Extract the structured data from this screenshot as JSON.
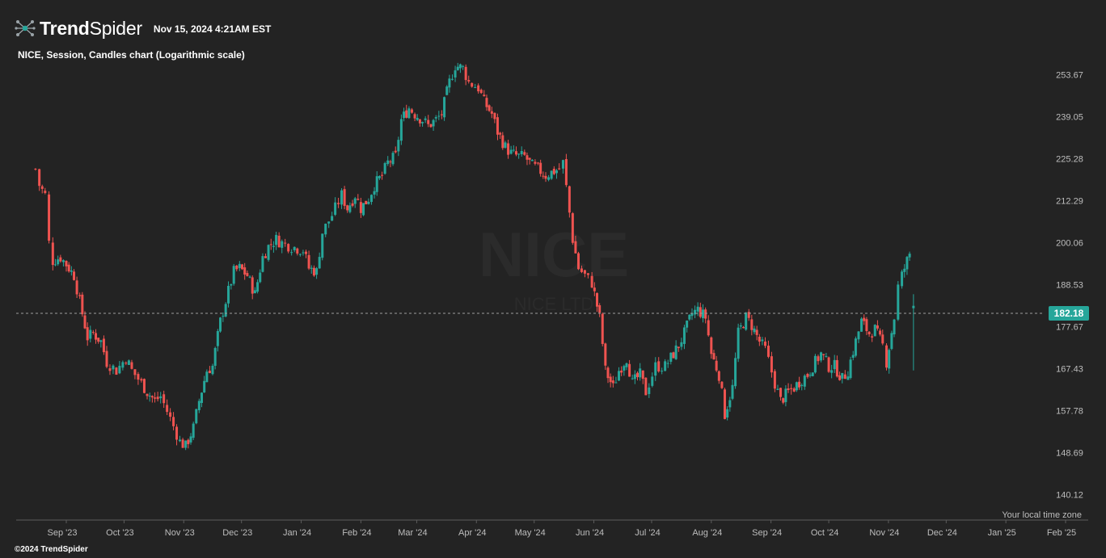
{
  "header": {
    "brand_bold": "Trend",
    "brand_light": "Spider",
    "timestamp": "Nov 15, 2024 4:21AM EST",
    "chart_description": "NICE, Session, Candles chart (Logarithmic scale)",
    "local_time_note": "Your local time zone",
    "copyright": "©2024 TrendSpider"
  },
  "watermark": {
    "symbol": "NICE",
    "name": "NICE LTD"
  },
  "colors": {
    "up": "#26a69a",
    "down": "#ef5350",
    "background": "#232323",
    "price_line": "#9e9e9e",
    "price_tag": "#26a69a"
  },
  "chart_data": {
    "type": "candlestick",
    "title": "NICE, Session, Candles chart (Logarithmic scale)",
    "y_scale": "log",
    "ylim": [
      135.8,
      268
    ],
    "y_ticks": [
      140.12,
      148.69,
      157.78,
      167.43,
      177.67,
      188.53,
      200.06,
      212.29,
      225.28,
      239.05,
      253.67
    ],
    "x_ticks": [
      "Sep '23",
      "Oct '23",
      "Nov '23",
      "Dec '23",
      "Jan '24",
      "Feb '24",
      "Mar '24",
      "Apr '24",
      "May '24",
      "Jun '24",
      "Jul '24",
      "Aug '24",
      "Sep '24",
      "Oct '24",
      "Nov '24",
      "Dec '24",
      "Jan '25",
      "Feb '25"
    ],
    "last_price": 182.18,
    "series": [
      {
        "date": "2023-08-16",
        "price": 222
      },
      {
        "date": "2023-08-18",
        "price": 217
      },
      {
        "date": "2023-08-21",
        "price": 214
      },
      {
        "date": "2023-08-23",
        "price": 200
      },
      {
        "date": "2023-08-25",
        "price": 195
      },
      {
        "date": "2023-08-29",
        "price": 196
      },
      {
        "date": "2023-09-01",
        "price": 194
      },
      {
        "date": "2023-09-05",
        "price": 191
      },
      {
        "date": "2023-09-08",
        "price": 184
      },
      {
        "date": "2023-09-12",
        "price": 175
      },
      {
        "date": "2023-09-15",
        "price": 176
      },
      {
        "date": "2023-09-19",
        "price": 174
      },
      {
        "date": "2023-09-22",
        "price": 169
      },
      {
        "date": "2023-09-27",
        "price": 167
      },
      {
        "date": "2023-10-02",
        "price": 170
      },
      {
        "date": "2023-10-05",
        "price": 167
      },
      {
        "date": "2023-10-10",
        "price": 164
      },
      {
        "date": "2023-10-13",
        "price": 162
      },
      {
        "date": "2023-10-17",
        "price": 160
      },
      {
        "date": "2023-10-20",
        "price": 161
      },
      {
        "date": "2023-10-25",
        "price": 156
      },
      {
        "date": "2023-10-30",
        "price": 151
      },
      {
        "date": "2023-11-02",
        "price": 150
      },
      {
        "date": "2023-11-06",
        "price": 154
      },
      {
        "date": "2023-11-09",
        "price": 160
      },
      {
        "date": "2023-11-13",
        "price": 167
      },
      {
        "date": "2023-11-16",
        "price": 168
      },
      {
        "date": "2023-11-20",
        "price": 179
      },
      {
        "date": "2023-11-27",
        "price": 192
      },
      {
        "date": "2023-11-30",
        "price": 193
      },
      {
        "date": "2023-12-04",
        "price": 191
      },
      {
        "date": "2023-12-08",
        "price": 186
      },
      {
        "date": "2023-12-12",
        "price": 196
      },
      {
        "date": "2023-12-15",
        "price": 199
      },
      {
        "date": "2023-12-19",
        "price": 201
      },
      {
        "date": "2023-12-22",
        "price": 200
      },
      {
        "date": "2023-12-27",
        "price": 199
      },
      {
        "date": "2024-01-02",
        "price": 198
      },
      {
        "date": "2024-01-05",
        "price": 193
      },
      {
        "date": "2024-01-09",
        "price": 192
      },
      {
        "date": "2024-01-12",
        "price": 203
      },
      {
        "date": "2024-01-17",
        "price": 208
      },
      {
        "date": "2024-01-22",
        "price": 214
      },
      {
        "date": "2024-01-25",
        "price": 210
      },
      {
        "date": "2024-01-29",
        "price": 214
      },
      {
        "date": "2024-02-01",
        "price": 210
      },
      {
        "date": "2024-02-05",
        "price": 213
      },
      {
        "date": "2024-02-08",
        "price": 217
      },
      {
        "date": "2024-02-12",
        "price": 220
      },
      {
        "date": "2024-02-15",
        "price": 224
      },
      {
        "date": "2024-02-19",
        "price": 226
      },
      {
        "date": "2024-02-22",
        "price": 238
      },
      {
        "date": "2024-02-26",
        "price": 242
      },
      {
        "date": "2024-02-29",
        "price": 240
      },
      {
        "date": "2024-03-04",
        "price": 238
      },
      {
        "date": "2024-03-07",
        "price": 236
      },
      {
        "date": "2024-03-11",
        "price": 238
      },
      {
        "date": "2024-03-14",
        "price": 240
      },
      {
        "date": "2024-03-18",
        "price": 251
      },
      {
        "date": "2024-03-21",
        "price": 257
      },
      {
        "date": "2024-03-25",
        "price": 256
      },
      {
        "date": "2024-03-28",
        "price": 251
      },
      {
        "date": "2024-04-02",
        "price": 249
      },
      {
        "date": "2024-04-05",
        "price": 244
      },
      {
        "date": "2024-04-09",
        "price": 240
      },
      {
        "date": "2024-04-12",
        "price": 234
      },
      {
        "date": "2024-04-16",
        "price": 229
      },
      {
        "date": "2024-04-19",
        "price": 227
      },
      {
        "date": "2024-04-23",
        "price": 226
      },
      {
        "date": "2024-04-26",
        "price": 226
      },
      {
        "date": "2024-04-30",
        "price": 223
      },
      {
        "date": "2024-05-03",
        "price": 222
      },
      {
        "date": "2024-05-07",
        "price": 220
      },
      {
        "date": "2024-05-10",
        "price": 221
      },
      {
        "date": "2024-05-14",
        "price": 222
      },
      {
        "date": "2024-05-16",
        "price": 224
      },
      {
        "date": "2024-05-21",
        "price": 201
      },
      {
        "date": "2024-05-24",
        "price": 193
      },
      {
        "date": "2024-05-29",
        "price": 190
      },
      {
        "date": "2024-05-31",
        "price": 189
      },
      {
        "date": "2024-06-04",
        "price": 180
      },
      {
        "date": "2024-06-07",
        "price": 167
      },
      {
        "date": "2024-06-11",
        "price": 163
      },
      {
        "date": "2024-06-14",
        "price": 167
      },
      {
        "date": "2024-06-18",
        "price": 170
      },
      {
        "date": "2024-06-21",
        "price": 164
      },
      {
        "date": "2024-06-25",
        "price": 166
      },
      {
        "date": "2024-06-28",
        "price": 162
      },
      {
        "date": "2024-07-03",
        "price": 168
      },
      {
        "date": "2024-07-08",
        "price": 168
      },
      {
        "date": "2024-07-11",
        "price": 170
      },
      {
        "date": "2024-07-15",
        "price": 173
      },
      {
        "date": "2024-07-18",
        "price": 176
      },
      {
        "date": "2024-07-22",
        "price": 181
      },
      {
        "date": "2024-07-25",
        "price": 182
      },
      {
        "date": "2024-07-29",
        "price": 180
      },
      {
        "date": "2024-08-01",
        "price": 171
      },
      {
        "date": "2024-08-05",
        "price": 166
      },
      {
        "date": "2024-08-08",
        "price": 157
      },
      {
        "date": "2024-08-12",
        "price": 163
      },
      {
        "date": "2024-08-15",
        "price": 176
      },
      {
        "date": "2024-08-19",
        "price": 180
      },
      {
        "date": "2024-08-22",
        "price": 178
      },
      {
        "date": "2024-08-26",
        "price": 174
      },
      {
        "date": "2024-08-29",
        "price": 172
      },
      {
        "date": "2024-09-03",
        "price": 164
      },
      {
        "date": "2024-09-06",
        "price": 160
      },
      {
        "date": "2024-09-10",
        "price": 162
      },
      {
        "date": "2024-09-13",
        "price": 163
      },
      {
        "date": "2024-09-17",
        "price": 165
      },
      {
        "date": "2024-09-20",
        "price": 166
      },
      {
        "date": "2024-09-24",
        "price": 169
      },
      {
        "date": "2024-09-27",
        "price": 171
      },
      {
        "date": "2024-10-01",
        "price": 168
      },
      {
        "date": "2024-10-04",
        "price": 168
      },
      {
        "date": "2024-10-08",
        "price": 165
      },
      {
        "date": "2024-10-11",
        "price": 167
      },
      {
        "date": "2024-10-15",
        "price": 174
      },
      {
        "date": "2024-10-18",
        "price": 179
      },
      {
        "date": "2024-10-22",
        "price": 176
      },
      {
        "date": "2024-10-25",
        "price": 177
      },
      {
        "date": "2024-10-29",
        "price": 173
      },
      {
        "date": "2024-10-31",
        "price": 169
      },
      {
        "date": "2024-11-04",
        "price": 180
      },
      {
        "date": "2024-11-06",
        "price": 188
      },
      {
        "date": "2024-11-08",
        "price": 191
      },
      {
        "date": "2024-11-12",
        "price": 197
      },
      {
        "date": "2024-11-14",
        "price": 182
      }
    ]
  }
}
